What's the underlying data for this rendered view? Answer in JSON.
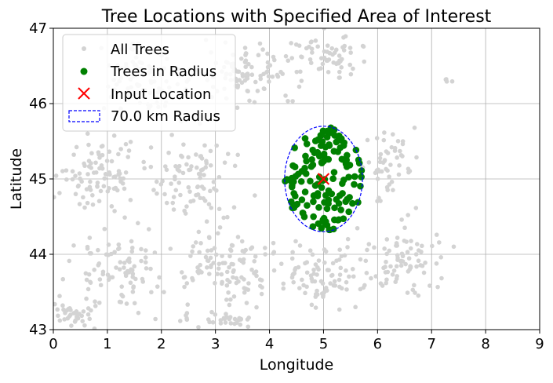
{
  "chart_data": {
    "type": "scatter",
    "title": "Tree Locations with Specified Area of Interest",
    "xlabel": "Longitude",
    "ylabel": "Latitude",
    "xlim": [
      0,
      9
    ],
    "ylim": [
      43,
      47
    ],
    "x_ticks": [
      "0",
      "1",
      "2",
      "3",
      "4",
      "5",
      "6",
      "7",
      "8",
      "9"
    ],
    "y_ticks": [
      "43",
      "44",
      "45",
      "46",
      "47"
    ],
    "grid": true,
    "legend_position": "top-left",
    "colors": {
      "all_trees": "#d3d3d3",
      "trees_in_radius": "#008000",
      "input_location": "#ff0000",
      "radius": "#0000ff"
    },
    "legend": [
      {
        "key": "all_trees",
        "label": "All Trees"
      },
      {
        "key": "trees_in_radius",
        "label": "Trees in Radius"
      },
      {
        "key": "input_location",
        "label": "Input Location"
      },
      {
        "key": "radius",
        "label": "70.0 km Radius"
      }
    ],
    "input_location": {
      "x": 5.0,
      "y": 45.0
    },
    "radius_km": 70.0,
    "radius_extent": {
      "lon_half_width": 0.72,
      "lat_half_height": 0.7
    },
    "all_trees_clusters": [
      {
        "cx": 0.9,
        "cy": 45.0,
        "sx": 0.7,
        "sy": 0.45,
        "n": 90
      },
      {
        "cx": 1.8,
        "cy": 46.3,
        "sx": 0.8,
        "sy": 0.4,
        "n": 90
      },
      {
        "cx": 3.5,
        "cy": 46.4,
        "sx": 0.9,
        "sy": 0.35,
        "n": 90
      },
      {
        "cx": 5.0,
        "cy": 46.6,
        "sx": 0.8,
        "sy": 0.3,
        "n": 70
      },
      {
        "cx": 2.6,
        "cy": 45.0,
        "sx": 0.7,
        "sy": 0.5,
        "n": 90
      },
      {
        "cx": 1.2,
        "cy": 43.8,
        "sx": 0.8,
        "sy": 0.45,
        "n": 90
      },
      {
        "cx": 3.3,
        "cy": 43.8,
        "sx": 0.8,
        "sy": 0.45,
        "n": 110
      },
      {
        "cx": 5.0,
        "cy": 43.7,
        "sx": 0.8,
        "sy": 0.4,
        "n": 90
      },
      {
        "cx": 6.5,
        "cy": 43.9,
        "sx": 0.6,
        "sy": 0.45,
        "n": 80
      },
      {
        "cx": 6.2,
        "cy": 45.2,
        "sx": 0.45,
        "sy": 0.4,
        "n": 50
      },
      {
        "cx": 7.4,
        "cy": 46.3,
        "sx": 0.3,
        "sy": 0.05,
        "n": 4
      },
      {
        "cx": 0.4,
        "cy": 43.2,
        "sx": 0.5,
        "sy": 0.15,
        "n": 40
      },
      {
        "cx": 3.0,
        "cy": 43.15,
        "sx": 0.6,
        "sy": 0.1,
        "n": 30
      }
    ],
    "trees_in_radius_count": 140
  }
}
